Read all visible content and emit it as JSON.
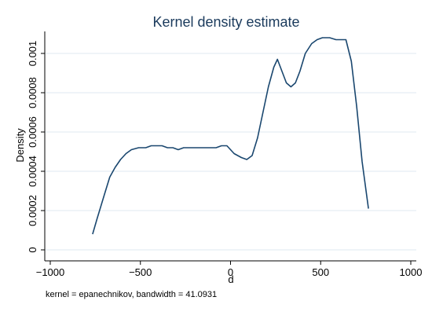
{
  "chart_data": {
    "type": "line",
    "title": "Kernel density estimate",
    "xlabel": "d",
    "ylabel": "Density",
    "xlim": [
      -1000,
      1000
    ],
    "ylim": [
      0,
      0.0011
    ],
    "xticks": [
      -1000,
      -500,
      0,
      500,
      1000
    ],
    "xtick_labels": [
      "−1000",
      "−500",
      "0",
      "500",
      "1000"
    ],
    "yticks": [
      0,
      0.0002,
      0.0004,
      0.0006,
      0.0008,
      0.001
    ],
    "ytick_labels": [
      "0",
      "0.0002",
      "0.0004",
      "0.0006",
      "0.0008",
      "0.001"
    ],
    "grid": true,
    "note": "kernel = epanechnikov, bandwidth = 41.0931",
    "series": [
      {
        "x": [
          -765,
          -740,
          -700,
          -670,
          -640,
          -610,
          -580,
          -550,
          -510,
          -470,
          -440,
          -410,
          -380,
          -350,
          -320,
          -290,
          -260,
          -230,
          -200,
          -170,
          -140,
          -110,
          -80,
          -50,
          -20,
          20,
          60,
          90,
          120,
          150,
          180,
          210,
          240,
          260,
          285,
          310,
          335,
          360,
          385,
          415,
          450,
          480,
          510,
          550,
          585,
          620,
          640,
          670,
          700,
          730,
          765
        ],
        "y": [
          8e-05,
          0.00016,
          0.00028,
          0.00037,
          0.00042,
          0.00046,
          0.00049,
          0.00051,
          0.00052,
          0.00052,
          0.00053,
          0.00053,
          0.00053,
          0.00052,
          0.00052,
          0.00051,
          0.00052,
          0.00052,
          0.00052,
          0.00052,
          0.00052,
          0.00052,
          0.00052,
          0.00053,
          0.00053,
          0.00049,
          0.00047,
          0.00046,
          0.00048,
          0.00057,
          0.0007,
          0.00083,
          0.00093,
          0.00097,
          0.00091,
          0.00085,
          0.00083,
          0.00085,
          0.00091,
          0.001,
          0.00105,
          0.00107,
          0.00108,
          0.00108,
          0.00107,
          0.00107,
          0.00107,
          0.00096,
          0.00073,
          0.00045,
          0.00021
        ]
      }
    ]
  }
}
